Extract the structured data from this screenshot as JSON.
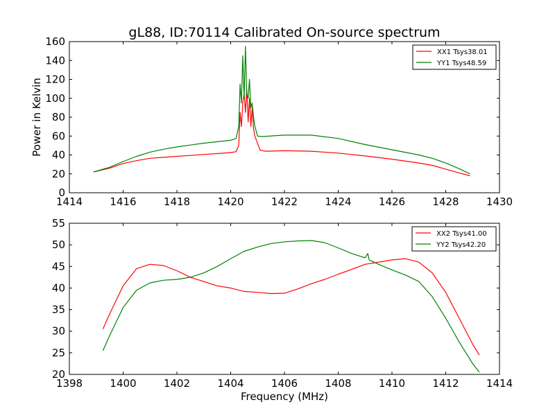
{
  "chart_data": [
    {
      "type": "line",
      "title": "gL88, ID:70114 Calibrated On-source spectrum",
      "xlabel": "",
      "ylabel": "Power in Kelvin",
      "xlim": [
        1414,
        1430
      ],
      "ylim": [
        0,
        160
      ],
      "xticks": [
        "1414",
        "1416",
        "1418",
        "1420",
        "1422",
        "1424",
        "1426",
        "1428",
        "1430"
      ],
      "yticks": [
        "0",
        "20",
        "40",
        "60",
        "80",
        "100",
        "120",
        "140",
        "160"
      ],
      "legend_position": "top-right",
      "grid": false,
      "series": [
        {
          "name": "XX1 Tsys38.01",
          "color": "#ff0000",
          "x": [
            1414.9,
            1415.5,
            1416.0,
            1416.5,
            1417.0,
            1417.5,
            1418.0,
            1418.5,
            1419.0,
            1419.5,
            1420.0,
            1420.2,
            1420.3,
            1420.35,
            1420.4,
            1420.45,
            1420.5,
            1420.55,
            1420.6,
            1420.65,
            1420.7,
            1420.75,
            1420.8,
            1420.85,
            1420.9,
            1421.0,
            1421.1,
            1421.3,
            1422.0,
            1423.0,
            1424.0,
            1425.0,
            1426.0,
            1427.0,
            1427.5,
            1428.0,
            1428.5,
            1428.9
          ],
          "values": [
            22,
            26,
            31,
            34,
            36.5,
            37.5,
            38.5,
            39.5,
            40.5,
            41.5,
            42.5,
            43.5,
            50,
            85,
            70,
            95,
            105,
            85,
            110,
            75,
            100,
            70,
            90,
            68,
            60,
            52,
            45,
            44,
            44.5,
            44,
            42,
            39,
            35.5,
            31.5,
            29,
            25,
            21,
            18
          ]
        },
        {
          "name": "YY1 Tsys48.59",
          "color": "#008000",
          "x": [
            1414.9,
            1415.5,
            1416.0,
            1416.5,
            1417.0,
            1417.5,
            1418.0,
            1418.5,
            1419.0,
            1419.5,
            1420.0,
            1420.2,
            1420.3,
            1420.35,
            1420.4,
            1420.45,
            1420.5,
            1420.55,
            1420.6,
            1420.65,
            1420.7,
            1420.75,
            1420.8,
            1420.85,
            1420.9,
            1421.0,
            1421.2,
            1422.0,
            1423.0,
            1424.0,
            1425.0,
            1426.0,
            1427.0,
            1427.5,
            1428.0,
            1428.5,
            1428.9
          ],
          "values": [
            22,
            27,
            33,
            38.5,
            43,
            46,
            48.5,
            50.5,
            52.5,
            54,
            55.5,
            57.5,
            70,
            115,
            95,
            145,
            100,
            155,
            105,
            100,
            120,
            90,
            95,
            80,
            70,
            60,
            59.5,
            61,
            61,
            57.5,
            51,
            45.5,
            40,
            36.5,
            31.5,
            25.5,
            20
          ]
        }
      ]
    },
    {
      "type": "line",
      "title": "",
      "xlabel": "Frequency (MHz)",
      "ylabel": "",
      "xlim": [
        1398,
        1414
      ],
      "ylim": [
        20,
        55
      ],
      "xticks": [
        "1398",
        "1400",
        "1402",
        "1404",
        "1406",
        "1408",
        "1410",
        "1412",
        "1414"
      ],
      "yticks": [
        "20",
        "25",
        "30",
        "35",
        "40",
        "45",
        "50",
        "55"
      ],
      "legend_position": "top-right",
      "grid": false,
      "series": [
        {
          "name": "XX2 Tsys41.00",
          "color": "#ff0000",
          "x": [
            1399.25,
            1399.5,
            1400.0,
            1400.5,
            1401.0,
            1401.5,
            1402.0,
            1402.5,
            1403.0,
            1403.5,
            1404.0,
            1404.5,
            1405.0,
            1405.5,
            1406.0,
            1406.5,
            1407.0,
            1407.5,
            1408.0,
            1408.5,
            1409.0,
            1409.5,
            1410.0,
            1410.5,
            1411.0,
            1411.5,
            1412.0,
            1412.5,
            1413.0,
            1413.25
          ],
          "values": [
            30.5,
            34,
            40.5,
            44.5,
            45.5,
            45.2,
            44,
            42.5,
            41.5,
            40.5,
            40,
            39.2,
            39,
            38.7,
            38.8,
            39.8,
            41,
            42,
            43.2,
            44.3,
            45.5,
            46,
            46.5,
            46.8,
            46,
            43.5,
            39,
            33,
            27,
            24.5
          ]
        },
        {
          "name": "YY2 Tsys42.20",
          "color": "#008000",
          "x": [
            1399.25,
            1399.5,
            1400.0,
            1400.5,
            1401.0,
            1401.5,
            1402.0,
            1402.5,
            1403.0,
            1403.5,
            1404.0,
            1404.5,
            1405.0,
            1405.5,
            1406.0,
            1406.5,
            1407.0,
            1407.5,
            1408.0,
            1408.5,
            1409.0,
            1409.1,
            1409.15,
            1409.5,
            1410.0,
            1410.5,
            1411.0,
            1411.5,
            1412.0,
            1412.5,
            1413.0,
            1413.25
          ],
          "values": [
            25.5,
            29,
            35.5,
            39.5,
            41.2,
            41.8,
            42,
            42.5,
            43.5,
            45,
            46.8,
            48.5,
            49.5,
            50.3,
            50.7,
            50.9,
            51,
            50.5,
            49.3,
            48,
            47,
            48,
            46.5,
            45.5,
            44.2,
            43,
            41.5,
            38,
            33,
            27.5,
            22.5,
            20.5
          ]
        }
      ]
    }
  ]
}
